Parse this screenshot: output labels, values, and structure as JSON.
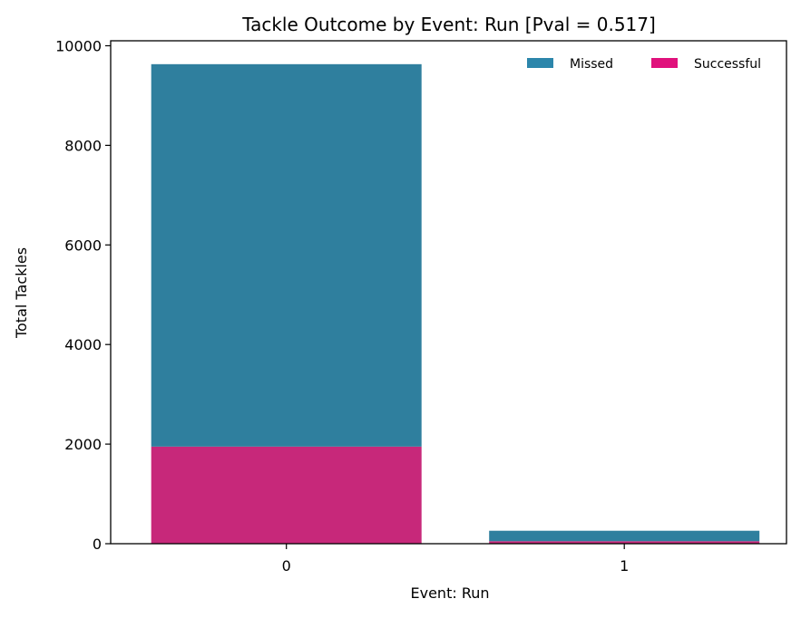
{
  "chart_data": {
    "type": "bar",
    "stacked": true,
    "title": "Tackle Outcome by Event: Run [Pval = 0.517]",
    "xlabel": "Event: Run",
    "ylabel": "Total Tackles",
    "categories": [
      "0",
      "1"
    ],
    "ylim": [
      0,
      10100
    ],
    "yticks": [
      0,
      2000,
      4000,
      6000,
      8000,
      10000
    ],
    "yticklabels": [
      "0",
      "2000",
      "4000",
      "6000",
      "8000",
      "10000"
    ],
    "series": [
      {
        "name": "Successful",
        "values": [
          1950,
          50
        ],
        "color": "#c7287a"
      },
      {
        "name": "Missed",
        "values": [
          7680,
          210
        ],
        "color": "#2f7f9e"
      }
    ],
    "legend": {
      "position": "top-right",
      "items": [
        {
          "label": "Missed",
          "color": "#2c86ab"
        },
        {
          "label": "Successful",
          "color": "#e0117c"
        }
      ]
    },
    "grid": false
  }
}
